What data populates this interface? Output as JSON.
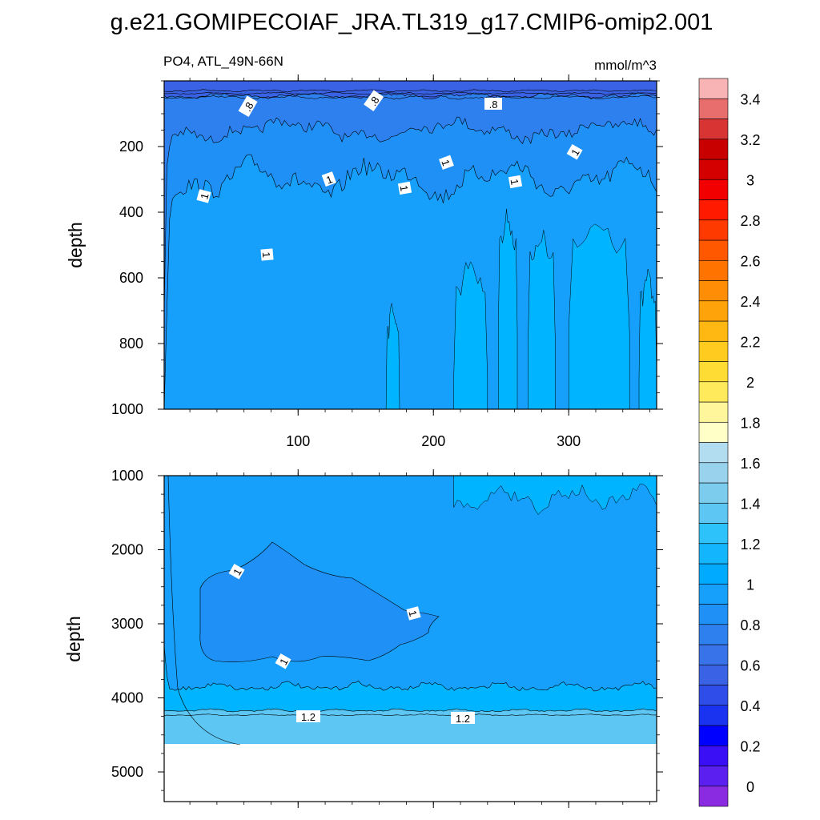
{
  "title": "g.e21.GOMIPECOIAF_JRA.TL319_g17.CMIP6-omip2.001",
  "chart_data": {
    "type": "heatmap",
    "subtitle_left": "PO4, ATL_49N-66N",
    "units": "mmol/m^3",
    "x": {
      "label": "",
      "range": [
        1,
        365
      ],
      "ticks": [
        100,
        200,
        300
      ]
    },
    "panels": [
      {
        "name": "upper",
        "ylabel": "depth",
        "ylim": [
          0,
          1000
        ],
        "yticks": [
          200,
          400,
          600,
          800,
          1000
        ],
        "contour_labels": [
          ".8",
          ".8",
          ".8",
          "1",
          "1",
          "1",
          "1",
          "1",
          "1",
          "1"
        ]
      },
      {
        "name": "lower",
        "ylabel": "depth",
        "ylim": [
          1000,
          5400
        ],
        "yticks": [
          1000,
          2000,
          3000,
          4000,
          5000
        ],
        "contour_labels": [
          "1",
          "1",
          "1",
          "1.2",
          "1.2"
        ]
      }
    ],
    "colorbar": {
      "levels": [
        0,
        0.1,
        0.2,
        0.3,
        0.4,
        0.5,
        0.6,
        0.7,
        0.8,
        0.9,
        1.0,
        1.1,
        1.2,
        1.3,
        1.4,
        1.5,
        1.6,
        1.7,
        1.8,
        1.9,
        2.0,
        2.1,
        2.2,
        2.3,
        2.4,
        2.5,
        2.6,
        2.7,
        2.8,
        2.9,
        3.0,
        3.1,
        3.2,
        3.3,
        3.4,
        3.5
      ],
      "tick_labels": [
        "0",
        "0.2",
        "0.4",
        "0.6",
        "0.8",
        "1",
        "1.2",
        "1.4",
        "1.6",
        "1.8",
        "2",
        "2.2",
        "2.4",
        "2.6",
        "2.8",
        "3",
        "3.2",
        "3.4"
      ],
      "colors": [
        "#8a2be2",
        "#5b1ff0",
        "#3a0ff5",
        "#0000ff",
        "#1a33f0",
        "#2f4de8",
        "#3a62e4",
        "#3873ea",
        "#2f80ef",
        "#1f90f5",
        "#16a0fb",
        "#00aaff",
        "#13b6fc",
        "#2ec2fb",
        "#5dc6f2",
        "#7ccced",
        "#98d2ec",
        "#b2dcf0",
        "#ffffc8",
        "#fff59a",
        "#ffea5c",
        "#ffdc33",
        "#ffcb1e",
        "#ffb812",
        "#ffa30a",
        "#ff8d05",
        "#ff7400",
        "#ff5800",
        "#ff3a00",
        "#ff1a00",
        "#f20000",
        "#d40000",
        "#c80000",
        "#d83434",
        "#e86e6e",
        "#f8b4b4"
      ]
    },
    "fills": {
      "upper_top": "#3a62e4",
      "band_08": "#2f80ef",
      "band_09": "#1f90f5",
      "band_10": "#16a0fb",
      "band_11": "#00b4ff",
      "band_12": "#5dc6f2"
    }
  }
}
